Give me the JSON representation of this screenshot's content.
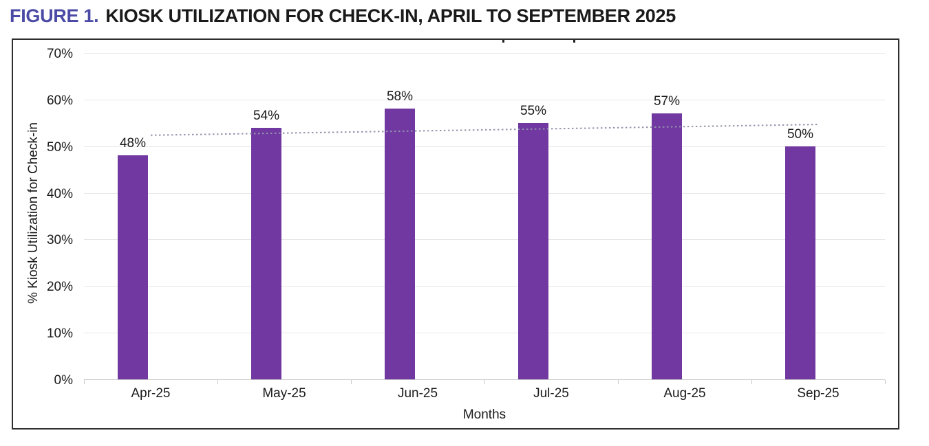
{
  "figure": {
    "label": "FIGURE 1.",
    "title": "KIOSK UTILIZATION FOR CHECK-IN, APRIL TO SEPTEMBER 2025",
    "label_color": "#4B4BA6",
    "title_color": "#1a1a1a"
  },
  "chart_data": {
    "type": "bar",
    "categories": [
      "Apr-25",
      "May-25",
      "Jun-25",
      "Jul-25",
      "Aug-25",
      "Sep-25"
    ],
    "values": [
      48,
      54,
      58,
      55,
      57,
      50
    ],
    "data_labels": [
      "48%",
      "54%",
      "58%",
      "55%",
      "57%",
      "50%"
    ],
    "xlabel": "Months",
    "ylabel": "% Kiosk Utilization for Check-in",
    "ylim": [
      0,
      70
    ],
    "ytick_step": 10,
    "yticks": [
      "0%",
      "10%",
      "20%",
      "30%",
      "40%",
      "50%",
      "60%",
      "70%"
    ],
    "grid": "horizontal",
    "legend": "none",
    "bar_color": "#7038A0",
    "trendline": {
      "style": "dotted",
      "color": "#9494AE",
      "start_value": 52.5,
      "end_value": 54.8
    }
  }
}
